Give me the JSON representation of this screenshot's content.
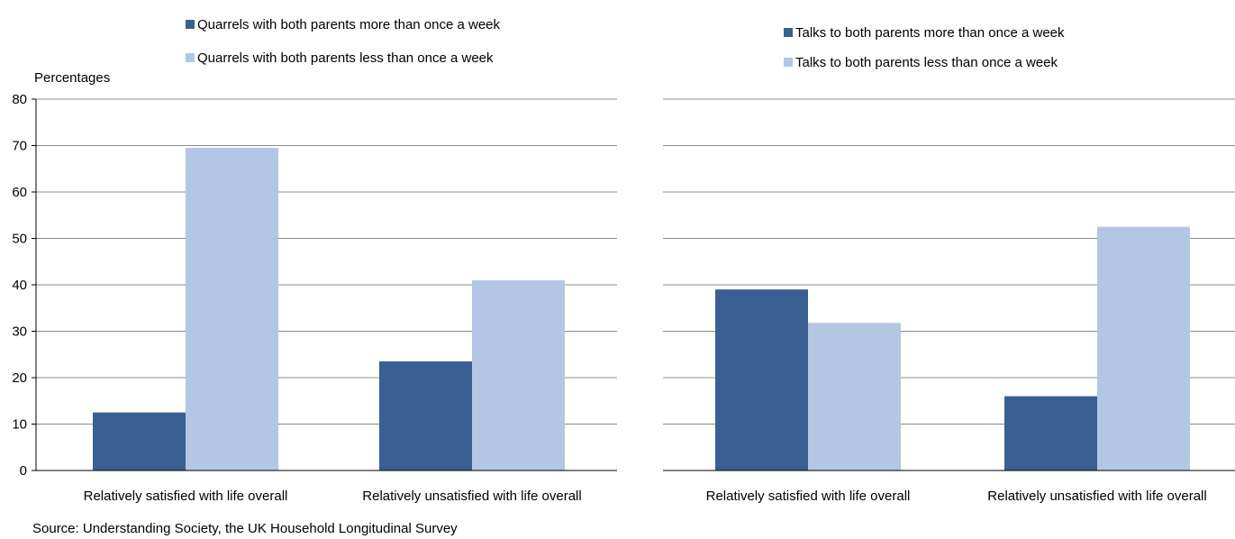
{
  "source_text": "Source: Understanding Society, the UK Household Longitudinal Survey",
  "colors": {
    "dark": "#3a5f93",
    "light": "#b3c7e4",
    "grid": "#8c8c8c",
    "axis": "#000000"
  },
  "chart_data": [
    {
      "type": "bar",
      "ylabel": "Percentages",
      "ylim": [
        0,
        80
      ],
      "yticks": [
        0,
        10,
        20,
        30,
        40,
        50,
        60,
        70,
        80
      ],
      "show_tick_labels": true,
      "grid": true,
      "legend_position": "top",
      "categories": [
        "Relatively satisfied with life overall",
        "Relatively unsatisfied with life overall"
      ],
      "series": [
        {
          "name": "Quarrels with both parents more than once a week",
          "values": [
            12.5,
            23.5
          ],
          "color": "#3a5f93"
        },
        {
          "name": "Quarrels with both parents less than once a week",
          "values": [
            69.5,
            41
          ],
          "color": "#b3c7e4"
        }
      ]
    },
    {
      "type": "bar",
      "ylabel": "",
      "ylim": [
        0,
        80
      ],
      "yticks": [
        0,
        10,
        20,
        30,
        40,
        50,
        60,
        70,
        80
      ],
      "show_tick_labels": false,
      "grid": true,
      "legend_position": "top",
      "categories": [
        "Relatively satisfied with life overall",
        "Relatively unsatisfied with life overall"
      ],
      "series": [
        {
          "name": "Talks to both parents more than once a week",
          "values": [
            39,
            16
          ],
          "color": "#3a5f93"
        },
        {
          "name": "Talks to both parents less than once a week",
          "values": [
            31.8,
            52.5
          ],
          "color": "#b3c7e4"
        }
      ]
    }
  ]
}
